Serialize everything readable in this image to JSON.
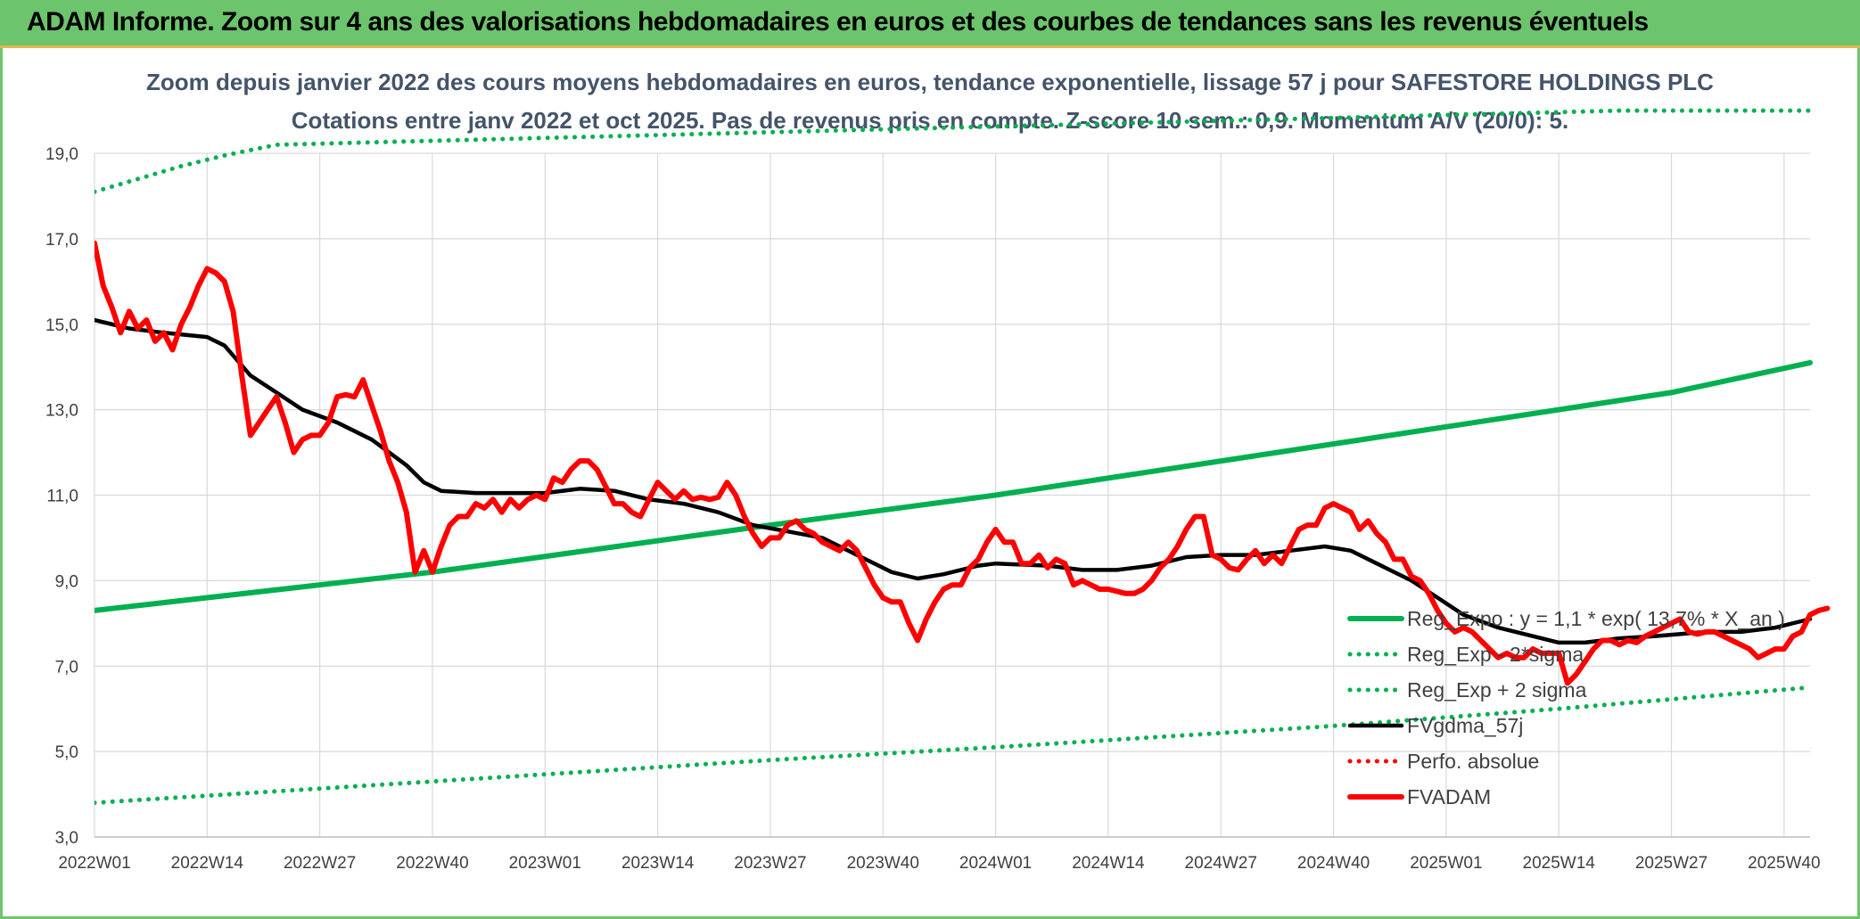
{
  "header": {
    "title": "ADAM Informe. Zoom sur 4 ans des valorisations hebdomadaires en euros et des courbes de tendances sans les revenus éventuels"
  },
  "colors": {
    "header_bg": "#6cc46c",
    "green": "#00b050",
    "red": "#ff0000",
    "black": "#000000",
    "title_text": "#44546a"
  },
  "chart_data": {
    "type": "line",
    "title": "Zoom depuis janvier 2022 des cours moyens hebdomadaires en euros, tendance exponentielle, lissage 57 j pour SAFESTORE HOLDINGS PLC",
    "subtitle": "Cotations entre janv 2022 et oct 2025. Pas de revenus pris en compte. Z-score 10 sem.: 0,9. Momentum A/V (20/0): 5.",
    "xlabel": "",
    "ylabel": "",
    "ylim": [
      3.0,
      19.0
    ],
    "y_ticks": [
      "3,0",
      "5,0",
      "7,0",
      "9,0",
      "11,0",
      "13,0",
      "15,0",
      "17,0",
      "19,0"
    ],
    "x_range": [
      0,
      198
    ],
    "x_ticks": [
      {
        "label": "2022W01",
        "x": 0
      },
      {
        "label": "2022W14",
        "x": 13
      },
      {
        "label": "2022W27",
        "x": 26
      },
      {
        "label": "2022W40",
        "x": 39
      },
      {
        "label": "2023W01",
        "x": 52
      },
      {
        "label": "2023W14",
        "x": 65
      },
      {
        "label": "2023W27",
        "x": 78
      },
      {
        "label": "2023W40",
        "x": 91
      },
      {
        "label": "2024W01",
        "x": 104
      },
      {
        "label": "2024W14",
        "x": 117
      },
      {
        "label": "2024W27",
        "x": 130
      },
      {
        "label": "2024W40",
        "x": 143
      },
      {
        "label": "2025W01",
        "x": 156
      },
      {
        "label": "2025W14",
        "x": 169
      },
      {
        "label": "2025W27",
        "x": 182
      },
      {
        "label": "2025W40",
        "x": 195
      }
    ],
    "grid": true,
    "legend_position": "bottom-right",
    "series": [
      {
        "name": "Reg_Expo : y = 1,1 * exp( 13,7% * X_an )",
        "style": "solid-thick",
        "color": "#00b050",
        "points": [
          [
            0,
            8.3
          ],
          [
            39,
            9.2
          ],
          [
            78,
            10.3
          ],
          [
            104,
            11.0
          ],
          [
            143,
            12.2
          ],
          [
            156,
            12.6
          ],
          [
            182,
            13.4
          ],
          [
            198,
            14.1
          ]
        ]
      },
      {
        "name": "Reg_Exp - 2*sigma",
        "style": "dotted",
        "color": "#00b050",
        "points": [
          [
            0,
            3.8
          ],
          [
            39,
            4.3
          ],
          [
            78,
            4.8
          ],
          [
            104,
            5.1
          ],
          [
            143,
            5.6
          ],
          [
            169,
            6.0
          ],
          [
            198,
            6.5
          ]
        ]
      },
      {
        "name": "Reg_Exp + 2 sigma",
        "style": "dotted",
        "color": "#00b050",
        "points": [
          [
            0,
            18.1
          ],
          [
            5,
            18.4
          ],
          [
            10,
            18.7
          ],
          [
            15,
            18.95
          ],
          [
            21,
            19.2
          ],
          [
            176,
            20.0
          ],
          [
            198,
            20.0
          ]
        ]
      },
      {
        "name": "FVgdma_57j",
        "style": "solid",
        "color": "#000000",
        "points": [
          [
            0,
            15.1
          ],
          [
            4,
            14.9
          ],
          [
            8,
            14.8
          ],
          [
            13,
            14.7
          ],
          [
            15,
            14.5
          ],
          [
            18,
            13.8
          ],
          [
            21,
            13.4
          ],
          [
            24,
            13.0
          ],
          [
            28,
            12.7
          ],
          [
            32,
            12.3
          ],
          [
            36,
            11.7
          ],
          [
            38,
            11.3
          ],
          [
            40,
            11.1
          ],
          [
            44,
            11.05
          ],
          [
            52,
            11.05
          ],
          [
            56,
            11.15
          ],
          [
            60,
            11.1
          ],
          [
            64,
            10.9
          ],
          [
            68,
            10.8
          ],
          [
            72,
            10.6
          ],
          [
            76,
            10.3
          ],
          [
            80,
            10.15
          ],
          [
            84,
            10.0
          ],
          [
            88,
            9.6
          ],
          [
            92,
            9.2
          ],
          [
            95,
            9.05
          ],
          [
            98,
            9.15
          ],
          [
            102,
            9.35
          ],
          [
            104,
            9.4
          ],
          [
            110,
            9.35
          ],
          [
            114,
            9.25
          ],
          [
            118,
            9.25
          ],
          [
            122,
            9.35
          ],
          [
            126,
            9.55
          ],
          [
            130,
            9.6
          ],
          [
            134,
            9.6
          ],
          [
            138,
            9.7
          ],
          [
            142,
            9.8
          ],
          [
            145,
            9.7
          ],
          [
            148,
            9.4
          ],
          [
            152,
            9.0
          ],
          [
            155,
            8.6
          ],
          [
            158,
            8.2
          ],
          [
            162,
            7.9
          ],
          [
            166,
            7.7
          ],
          [
            169,
            7.55
          ],
          [
            172,
            7.55
          ],
          [
            176,
            7.65
          ],
          [
            180,
            7.7
          ],
          [
            186,
            7.8
          ],
          [
            190,
            7.8
          ],
          [
            194,
            7.9
          ],
          [
            198,
            8.1
          ]
        ]
      },
      {
        "name": "Perfo. absolue",
        "style": "dotted",
        "color": "#ff0000",
        "points": []
      },
      {
        "name": "FVADAM",
        "style": "solid-thick",
        "color": "#ff0000",
        "points": [
          [
            0,
            16.9
          ],
          [
            1,
            15.9
          ],
          [
            2,
            15.4
          ],
          [
            3,
            14.8
          ],
          [
            4,
            15.3
          ],
          [
            5,
            14.9
          ],
          [
            6,
            15.1
          ],
          [
            7,
            14.6
          ],
          [
            8,
            14.8
          ],
          [
            9,
            14.4
          ],
          [
            10,
            15.0
          ],
          [
            11,
            15.4
          ],
          [
            12,
            15.9
          ],
          [
            13,
            16.3
          ],
          [
            14,
            16.2
          ],
          [
            15,
            16.0
          ],
          [
            16,
            15.3
          ],
          [
            17,
            13.8
          ],
          [
            18,
            12.4
          ],
          [
            19,
            12.7
          ],
          [
            20,
            13.0
          ],
          [
            21,
            13.3
          ],
          [
            22,
            12.7
          ],
          [
            23,
            12.0
          ],
          [
            24,
            12.3
          ],
          [
            25,
            12.4
          ],
          [
            26,
            12.4
          ],
          [
            27,
            12.7
          ],
          [
            28,
            13.3
          ],
          [
            29,
            13.35
          ],
          [
            30,
            13.3
          ],
          [
            31,
            13.7
          ],
          [
            32,
            13.1
          ],
          [
            33,
            12.5
          ],
          [
            34,
            11.8
          ],
          [
            35,
            11.3
          ],
          [
            36,
            10.6
          ],
          [
            37,
            9.2
          ],
          [
            38,
            9.7
          ],
          [
            39,
            9.2
          ],
          [
            40,
            9.8
          ],
          [
            41,
            10.3
          ],
          [
            42,
            10.5
          ],
          [
            43,
            10.5
          ],
          [
            44,
            10.8
          ],
          [
            45,
            10.7
          ],
          [
            46,
            10.9
          ],
          [
            47,
            10.6
          ],
          [
            48,
            10.9
          ],
          [
            49,
            10.7
          ],
          [
            50,
            10.9
          ],
          [
            51,
            11.0
          ],
          [
            52,
            10.9
          ],
          [
            53,
            11.4
          ],
          [
            54,
            11.3
          ],
          [
            55,
            11.6
          ],
          [
            56,
            11.8
          ],
          [
            57,
            11.8
          ],
          [
            58,
            11.6
          ],
          [
            59,
            11.2
          ],
          [
            60,
            10.8
          ],
          [
            61,
            10.8
          ],
          [
            62,
            10.6
          ],
          [
            63,
            10.5
          ],
          [
            64,
            10.9
          ],
          [
            65,
            11.3
          ],
          [
            66,
            11.1
          ],
          [
            67,
            10.9
          ],
          [
            68,
            11.1
          ],
          [
            69,
            10.9
          ],
          [
            70,
            10.95
          ],
          [
            71,
            10.9
          ],
          [
            72,
            10.95
          ],
          [
            73,
            11.3
          ],
          [
            74,
            11.0
          ],
          [
            75,
            10.5
          ],
          [
            76,
            10.1
          ],
          [
            77,
            9.8
          ],
          [
            78,
            10.0
          ],
          [
            79,
            10.0
          ],
          [
            80,
            10.3
          ],
          [
            81,
            10.4
          ],
          [
            82,
            10.2
          ],
          [
            83,
            10.1
          ],
          [
            84,
            9.9
          ],
          [
            85,
            9.8
          ],
          [
            86,
            9.7
          ],
          [
            87,
            9.9
          ],
          [
            88,
            9.7
          ],
          [
            89,
            9.3
          ],
          [
            90,
            8.9
          ],
          [
            91,
            8.6
          ],
          [
            92,
            8.5
          ],
          [
            93,
            8.5
          ],
          [
            94,
            8.0
          ],
          [
            95,
            7.6
          ],
          [
            96,
            8.1
          ],
          [
            97,
            8.5
          ],
          [
            98,
            8.8
          ],
          [
            99,
            8.9
          ],
          [
            100,
            8.9
          ],
          [
            101,
            9.3
          ],
          [
            102,
            9.5
          ],
          [
            103,
            9.9
          ],
          [
            104,
            10.2
          ],
          [
            105,
            9.9
          ],
          [
            106,
            9.9
          ],
          [
            107,
            9.4
          ],
          [
            108,
            9.4
          ],
          [
            109,
            9.6
          ],
          [
            110,
            9.3
          ],
          [
            111,
            9.5
          ],
          [
            112,
            9.4
          ],
          [
            113,
            8.9
          ],
          [
            114,
            9.0
          ],
          [
            115,
            8.9
          ],
          [
            116,
            8.8
          ],
          [
            117,
            8.8
          ],
          [
            118,
            8.75
          ],
          [
            119,
            8.7
          ],
          [
            120,
            8.7
          ],
          [
            121,
            8.8
          ],
          [
            122,
            9.0
          ],
          [
            123,
            9.3
          ],
          [
            124,
            9.5
          ],
          [
            125,
            9.8
          ],
          [
            126,
            10.2
          ],
          [
            127,
            10.5
          ],
          [
            128,
            10.5
          ],
          [
            129,
            9.6
          ],
          [
            130,
            9.5
          ],
          [
            131,
            9.3
          ],
          [
            132,
            9.25
          ],
          [
            133,
            9.5
          ],
          [
            134,
            9.7
          ],
          [
            135,
            9.4
          ],
          [
            136,
            9.6
          ],
          [
            137,
            9.4
          ],
          [
            138,
            9.8
          ],
          [
            139,
            10.2
          ],
          [
            140,
            10.3
          ],
          [
            141,
            10.3
          ],
          [
            142,
            10.7
          ],
          [
            143,
            10.8
          ],
          [
            144,
            10.7
          ],
          [
            145,
            10.6
          ],
          [
            146,
            10.2
          ],
          [
            147,
            10.4
          ],
          [
            148,
            10.1
          ],
          [
            149,
            9.9
          ],
          [
            150,
            9.5
          ],
          [
            151,
            9.5
          ],
          [
            152,
            9.1
          ],
          [
            153,
            9.0
          ],
          [
            154,
            8.7
          ],
          [
            155,
            8.3
          ],
          [
            156,
            8.0
          ],
          [
            157,
            7.8
          ],
          [
            158,
            7.9
          ],
          [
            159,
            7.8
          ],
          [
            160,
            7.6
          ],
          [
            161,
            7.4
          ],
          [
            162,
            7.2
          ],
          [
            163,
            7.3
          ],
          [
            164,
            7.2
          ],
          [
            165,
            7.2
          ],
          [
            166,
            7.4
          ],
          [
            167,
            7.3
          ],
          [
            168,
            7.3
          ],
          [
            169,
            7.3
          ],
          [
            170,
            6.6
          ],
          [
            171,
            6.8
          ],
          [
            172,
            7.1
          ],
          [
            173,
            7.4
          ],
          [
            174,
            7.6
          ],
          [
            175,
            7.6
          ],
          [
            176,
            7.5
          ],
          [
            177,
            7.6
          ],
          [
            178,
            7.55
          ],
          [
            179,
            7.7
          ],
          [
            180,
            7.8
          ],
          [
            181,
            7.9
          ],
          [
            182,
            8.0
          ],
          [
            183,
            8.1
          ],
          [
            184,
            7.8
          ],
          [
            185,
            7.75
          ],
          [
            186,
            7.8
          ],
          [
            187,
            7.8
          ],
          [
            188,
            7.7
          ],
          [
            189,
            7.6
          ],
          [
            190,
            7.5
          ],
          [
            191,
            7.4
          ],
          [
            192,
            7.2
          ],
          [
            193,
            7.3
          ],
          [
            194,
            7.4
          ],
          [
            195,
            7.4
          ],
          [
            196,
            7.7
          ],
          [
            197,
            7.8
          ],
          [
            198,
            8.2
          ],
          [
            199,
            8.3
          ],
          [
            200,
            8.35
          ]
        ]
      }
    ]
  }
}
